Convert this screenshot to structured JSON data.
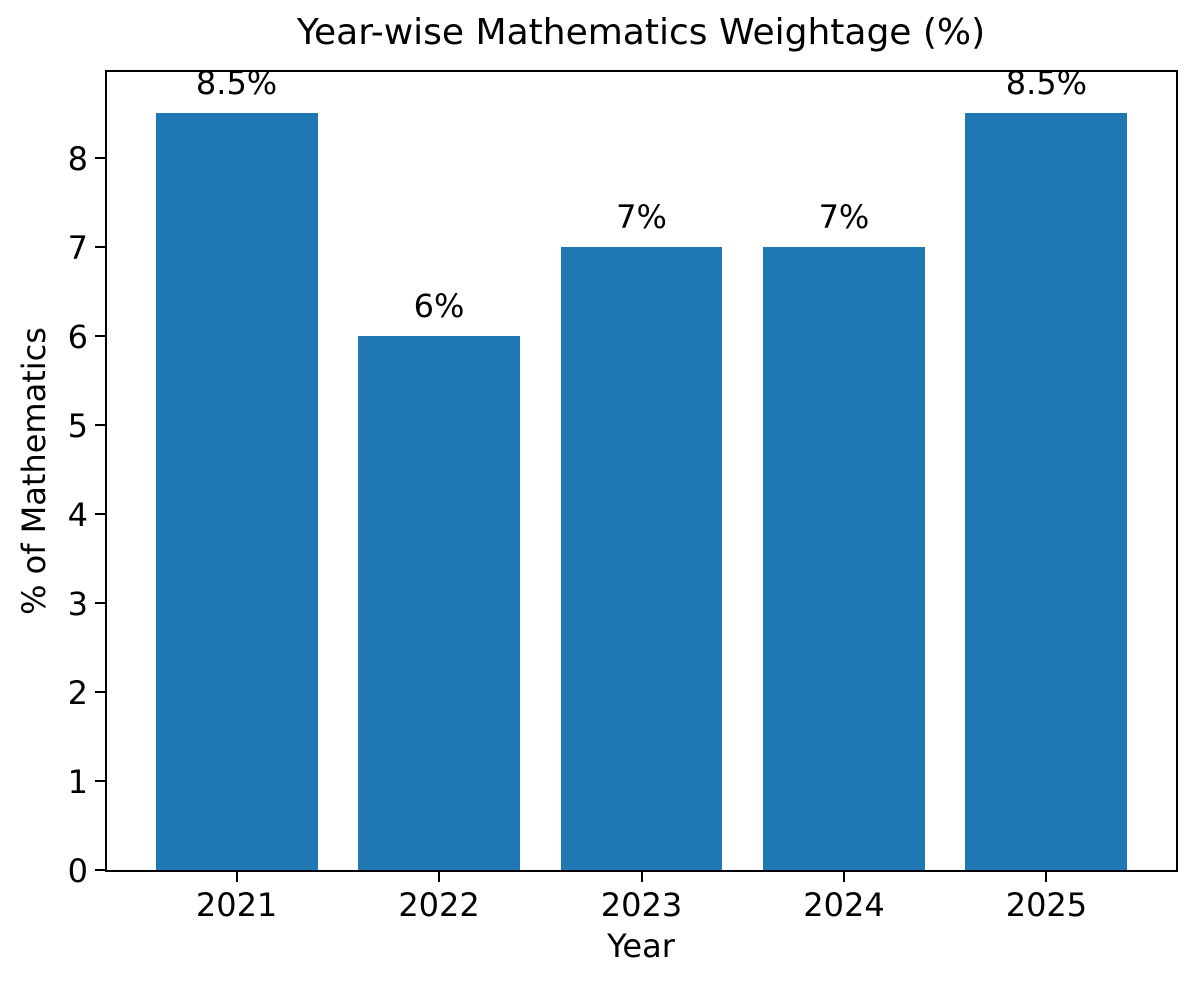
{
  "chart_data": {
    "type": "bar",
    "title": "Year-wise Mathematics Weightage (%)",
    "xlabel": "Year",
    "ylabel": "% of Mathematics",
    "categories": [
      "2021",
      "2022",
      "2023",
      "2024",
      "2025"
    ],
    "values": [
      8.5,
      6,
      7,
      7,
      8.5
    ],
    "bar_labels": [
      "8.5%",
      "6%",
      "7%",
      "7%",
      "8.5%"
    ],
    "bar_color": "#1f77b4",
    "yticks": [
      0,
      1,
      2,
      3,
      4,
      5,
      6,
      7,
      8
    ],
    "ytick_labels": [
      "0",
      "1",
      "2",
      "3",
      "4",
      "5",
      "6",
      "7",
      "8"
    ],
    "ylim": [
      0,
      8.96
    ],
    "xlim": [
      -0.64,
      4.64
    ],
    "bar_width": 0.8,
    "grid": false,
    "legend": "none",
    "axis_color": "#000000",
    "background_color": "#ffffff"
  }
}
